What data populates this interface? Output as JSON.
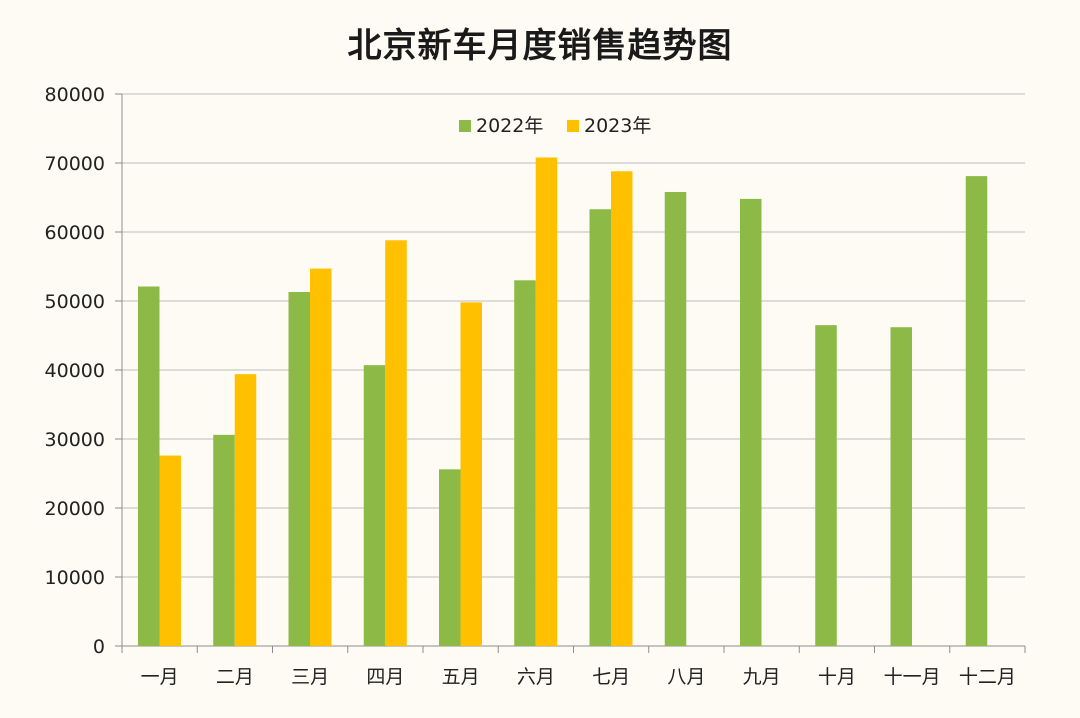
{
  "chart_data": {
    "type": "bar",
    "title": "北京新车月度销售趋势图",
    "xlabel": "",
    "ylabel": "",
    "ylim": [
      0,
      80000
    ],
    "yticks": [
      0,
      10000,
      20000,
      30000,
      40000,
      50000,
      60000,
      70000,
      80000
    ],
    "grid": true,
    "legend_position": "top-center",
    "categories": [
      "一月",
      "二月",
      "三月",
      "四月",
      "五月",
      "六月",
      "七月",
      "八月",
      "九月",
      "十月",
      "十一月",
      "十二月"
    ],
    "series": [
      {
        "name": "2022年",
        "color": "#8db946",
        "values": [
          52100,
          30600,
          51300,
          40700,
          25600,
          53000,
          63300,
          65800,
          64800,
          46500,
          46200,
          68100
        ]
      },
      {
        "name": "2023年",
        "color": "#ffc000",
        "values": [
          27600,
          39400,
          54700,
          58800,
          49800,
          70800,
          68800,
          null,
          null,
          null,
          null,
          null
        ]
      }
    ]
  }
}
